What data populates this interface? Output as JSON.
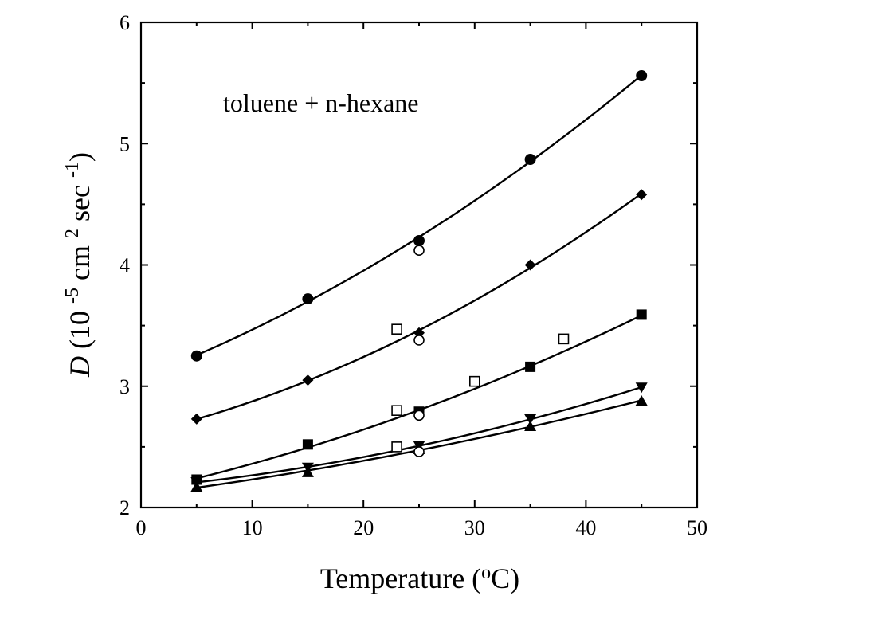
{
  "chart_data": {
    "type": "scatter",
    "annotation": "toluene + n-hexane",
    "xlabel": "Temperature (oC)",
    "ylabel": "D (10 -5 cm 2 sec -1)",
    "xlim": [
      0,
      50
    ],
    "ylim": [
      2,
      6
    ],
    "xticks": [
      "0",
      "10",
      "20",
      "30",
      "40",
      "50"
    ],
    "yticks": [
      "2",
      "3",
      "4",
      "5",
      "6"
    ],
    "grid": false,
    "series": [
      {
        "marker": "circle-filled",
        "fit": true,
        "x": [
          5,
          15,
          25,
          35,
          45
        ],
        "y": [
          3.25,
          3.72,
          4.2,
          4.87,
          5.56
        ]
      },
      {
        "marker": "diamond-filled",
        "fit": true,
        "x": [
          5,
          15,
          25,
          35,
          45
        ],
        "y": [
          2.73,
          3.05,
          3.44,
          4.0,
          4.58
        ]
      },
      {
        "marker": "square-filled",
        "fit": true,
        "x": [
          5,
          15,
          25,
          35,
          45
        ],
        "y": [
          2.23,
          2.52,
          2.79,
          3.16,
          3.59
        ]
      },
      {
        "marker": "triangle-down-filled",
        "fit": true,
        "x": [
          5,
          15,
          25,
          35,
          45
        ],
        "y": [
          2.21,
          2.33,
          2.51,
          2.73,
          2.99
        ]
      },
      {
        "marker": "triangle-up-filled",
        "fit": true,
        "x": [
          5,
          15,
          25,
          35,
          45
        ],
        "y": [
          2.17,
          2.29,
          2.48,
          2.67,
          2.88
        ]
      },
      {
        "marker": "circle-open",
        "fit": false,
        "x": [
          25,
          25,
          25,
          25
        ],
        "y": [
          4.12,
          3.38,
          2.76,
          2.46
        ]
      },
      {
        "marker": "square-open",
        "fit": false,
        "x": [
          23,
          23,
          23,
          30,
          38
        ],
        "y": [
          3.47,
          2.8,
          2.5,
          3.04,
          3.39
        ]
      }
    ]
  }
}
